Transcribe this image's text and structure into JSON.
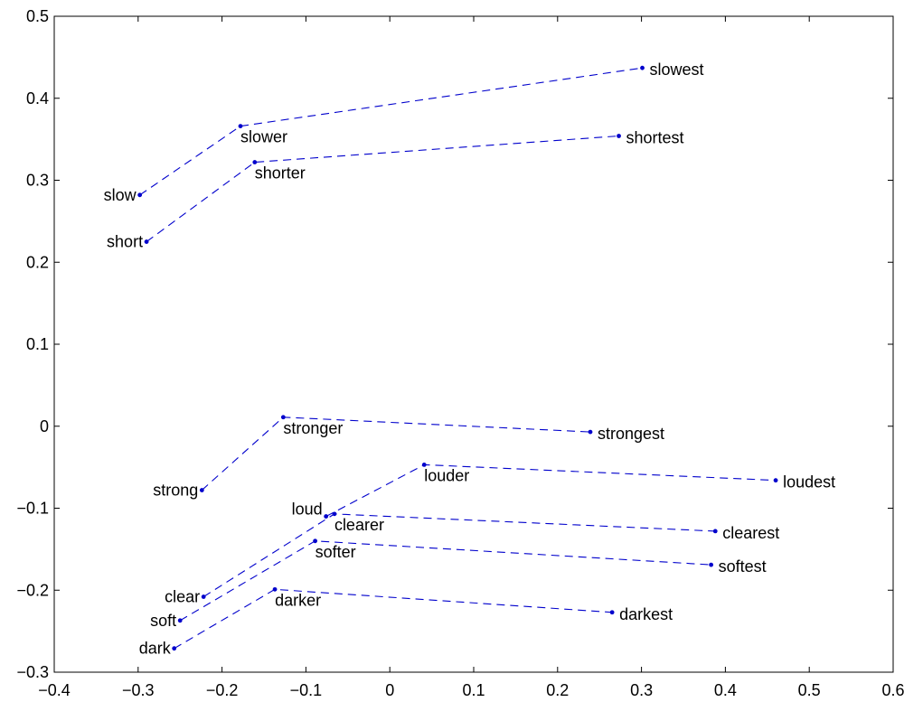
{
  "chart_data": {
    "type": "scatter",
    "title": "",
    "xlabel": "",
    "ylabel": "",
    "xlim": [
      -0.4,
      0.6
    ],
    "ylim": [
      -0.3,
      0.5
    ],
    "xticks": [
      "-0.4",
      "-0.3",
      "-0.2",
      "-0.1",
      "0",
      "0.1",
      "0.2",
      "0.3",
      "0.4",
      "0.5",
      "0.6"
    ],
    "yticks": [
      "-0.3",
      "-0.2",
      "-0.1",
      "0",
      "0.1",
      "0.2",
      "0.3",
      "0.4",
      "0.5"
    ],
    "grid": false,
    "legend": "none",
    "color": "#0000cc",
    "line_style": "dashed",
    "series": [
      {
        "points": [
          {
            "label": "slow",
            "x": -0.298,
            "y": 0.282
          },
          {
            "label": "slower",
            "x": -0.178,
            "y": 0.366
          },
          {
            "label": "slowest",
            "x": 0.301,
            "y": 0.437
          }
        ]
      },
      {
        "points": [
          {
            "label": "short",
            "x": -0.29,
            "y": 0.225
          },
          {
            "label": "shorter",
            "x": -0.161,
            "y": 0.322
          },
          {
            "label": "shortest",
            "x": 0.273,
            "y": 0.354
          }
        ]
      },
      {
        "points": [
          {
            "label": "strong",
            "x": -0.224,
            "y": -0.078
          },
          {
            "label": "stronger",
            "x": -0.127,
            "y": 0.011
          },
          {
            "label": "strongest",
            "x": 0.239,
            "y": -0.007
          }
        ]
      },
      {
        "points": [
          {
            "label": "loud",
            "x": -0.076,
            "y": -0.11
          },
          {
            "label": "louder",
            "x": 0.041,
            "y": -0.047
          },
          {
            "label": "loudest",
            "x": 0.46,
            "y": -0.066
          }
        ]
      },
      {
        "points": [
          {
            "label": "clear",
            "x": -0.222,
            "y": -0.208
          },
          {
            "label": "clearer",
            "x": -0.066,
            "y": -0.107
          },
          {
            "label": "clearest",
            "x": 0.388,
            "y": -0.128
          }
        ]
      },
      {
        "points": [
          {
            "label": "soft",
            "x": -0.25,
            "y": -0.237
          },
          {
            "label": "softer",
            "x": -0.089,
            "y": -0.14
          },
          {
            "label": "softest",
            "x": 0.383,
            "y": -0.169
          }
        ]
      },
      {
        "points": [
          {
            "label": "dark",
            "x": -0.257,
            "y": -0.271
          },
          {
            "label": "darker",
            "x": -0.137,
            "y": -0.199
          },
          {
            "label": "darkest",
            "x": 0.265,
            "y": -0.227
          }
        ]
      }
    ]
  }
}
